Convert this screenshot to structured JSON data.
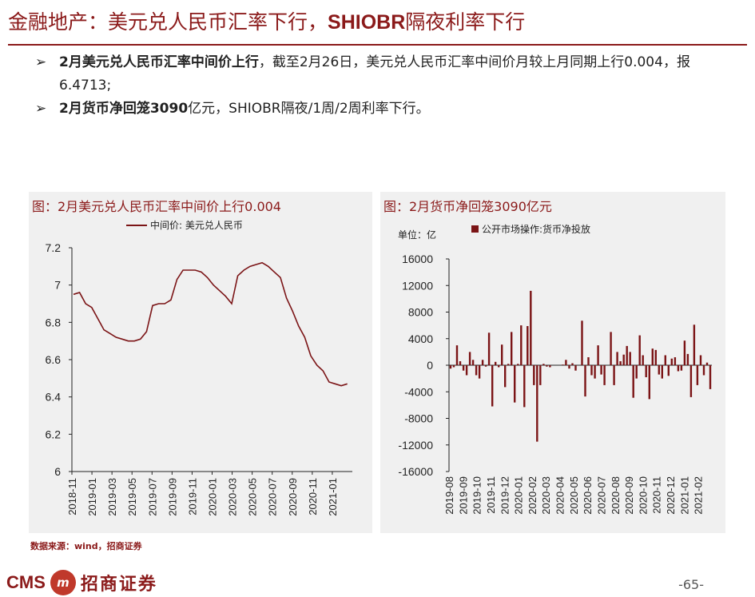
{
  "header": {
    "title_prefix": "金融地产：美元兑人民币汇率下行，",
    "title_bold": "SHIOBR",
    "title_suffix": "隔夜利率下行"
  },
  "bullets": [
    {
      "arrow": "➢",
      "bold": "2月美元兑人民币汇率中间价上行",
      "text": "，截至2月26日，美元兑人民币汇率中间价月较上月同期上行0.004，报6.4713;"
    },
    {
      "arrow": "➢",
      "bold": "2月货币净回笼3090",
      "text": "亿元，SHIOBR隔夜/1周/2周利率下行。"
    }
  ],
  "left_panel": {
    "title": "图：2月美元兑人民币汇率中间价上行0.004",
    "legend": "中间价: 美元兑人民币"
  },
  "right_panel": {
    "title": "图：2月货币净回笼3090亿元",
    "unit": "单位：亿",
    "legend": "公开市场操作:货币净投放"
  },
  "colors": {
    "brand": "#8B1A1A",
    "series": "#7B1416"
  },
  "chart_data": [
    {
      "type": "line",
      "title": "图：2月美元兑人民币汇率中间价上行0.004",
      "series": [
        {
          "name": "中间价: 美元兑人民币",
          "values": [
            6.95,
            6.96,
            6.9,
            6.88,
            6.82,
            6.76,
            6.74,
            6.72,
            6.71,
            6.7,
            6.7,
            6.71,
            6.75,
            6.89,
            6.9,
            6.9,
            6.92,
            7.03,
            7.08,
            7.08,
            7.08,
            7.07,
            7.04,
            7.0,
            6.97,
            6.94,
            6.9,
            7.05,
            7.08,
            7.1,
            7.11,
            7.12,
            7.1,
            7.07,
            7.04,
            6.93,
            6.86,
            6.78,
            6.72,
            6.62,
            6.57,
            6.54,
            6.48,
            6.47,
            6.46,
            6.47
          ]
        }
      ],
      "x_start": "2018-11",
      "x_end": "2021-02",
      "x_ticks": [
        "2018-11",
        "2019-01",
        "2019-03",
        "2019-05",
        "2019-07",
        "2019-09",
        "2019-11",
        "2020-01",
        "2020-03",
        "2020-05",
        "2020-07",
        "2020-09",
        "2020-11",
        "2021-01"
      ],
      "yticks": [
        "7.2",
        "7",
        "6.8",
        "6.6",
        "6.4",
        "6.2",
        "6"
      ],
      "ylim": [
        6,
        7.2
      ]
    },
    {
      "type": "bar",
      "title": "图：2月货币净回笼3090亿元",
      "ylabel": "单位：亿",
      "series": [
        {
          "name": "公开市场操作:货币净投放",
          "values": [
            -500,
            -300,
            3000,
            600,
            -800,
            -1500,
            2000,
            800,
            -1500,
            -2000,
            800,
            -200,
            4900,
            -6200,
            500,
            -300,
            3100,
            -3300,
            200,
            5000,
            -5600,
            200,
            6000,
            -6300,
            5900,
            11200,
            -3000,
            -11500,
            -3000,
            200,
            -200,
            -300,
            0,
            0,
            0,
            100,
            800,
            -500,
            300,
            -800,
            0,
            6700,
            -4700,
            1200,
            -1500,
            -2000,
            3000,
            -1400,
            -3000,
            0,
            5000,
            -3000,
            2000,
            600,
            1600,
            2900,
            2000,
            -4900,
            -2000,
            4500,
            1500,
            -1800,
            -5100,
            2500,
            2300,
            -1400,
            -2000,
            1500,
            -1600,
            1000,
            1200,
            -900,
            -800,
            3700,
            1700,
            -4800,
            6100,
            -3000,
            1500,
            -1500,
            400,
            -3600
          ]
        }
      ],
      "x_start": "2019-08",
      "x_end": "2021-02",
      "x_ticks": [
        "2019-08",
        "2019-09",
        "2019-10",
        "2019-11",
        "2019-12",
        "2020-01",
        "2020-02",
        "2020-03",
        "2020-04",
        "2020-05",
        "2020-06",
        "2020-07",
        "2020-08",
        "2020-09",
        "2020-10",
        "2020-11",
        "2020-12",
        "2021-01",
        "2021-02"
      ],
      "yticks": [
        "16000",
        "12000",
        "8000",
        "4000",
        "0",
        "-4000",
        "-8000",
        "-12000",
        "-16000"
      ],
      "ylim": [
        -16000,
        16000
      ]
    }
  ],
  "footer": {
    "source": "数据来源：wind，招商证券",
    "logo_cms": "CMS",
    "logo_mark": "m",
    "logo_cn": "招商证券",
    "page": "-65-"
  }
}
